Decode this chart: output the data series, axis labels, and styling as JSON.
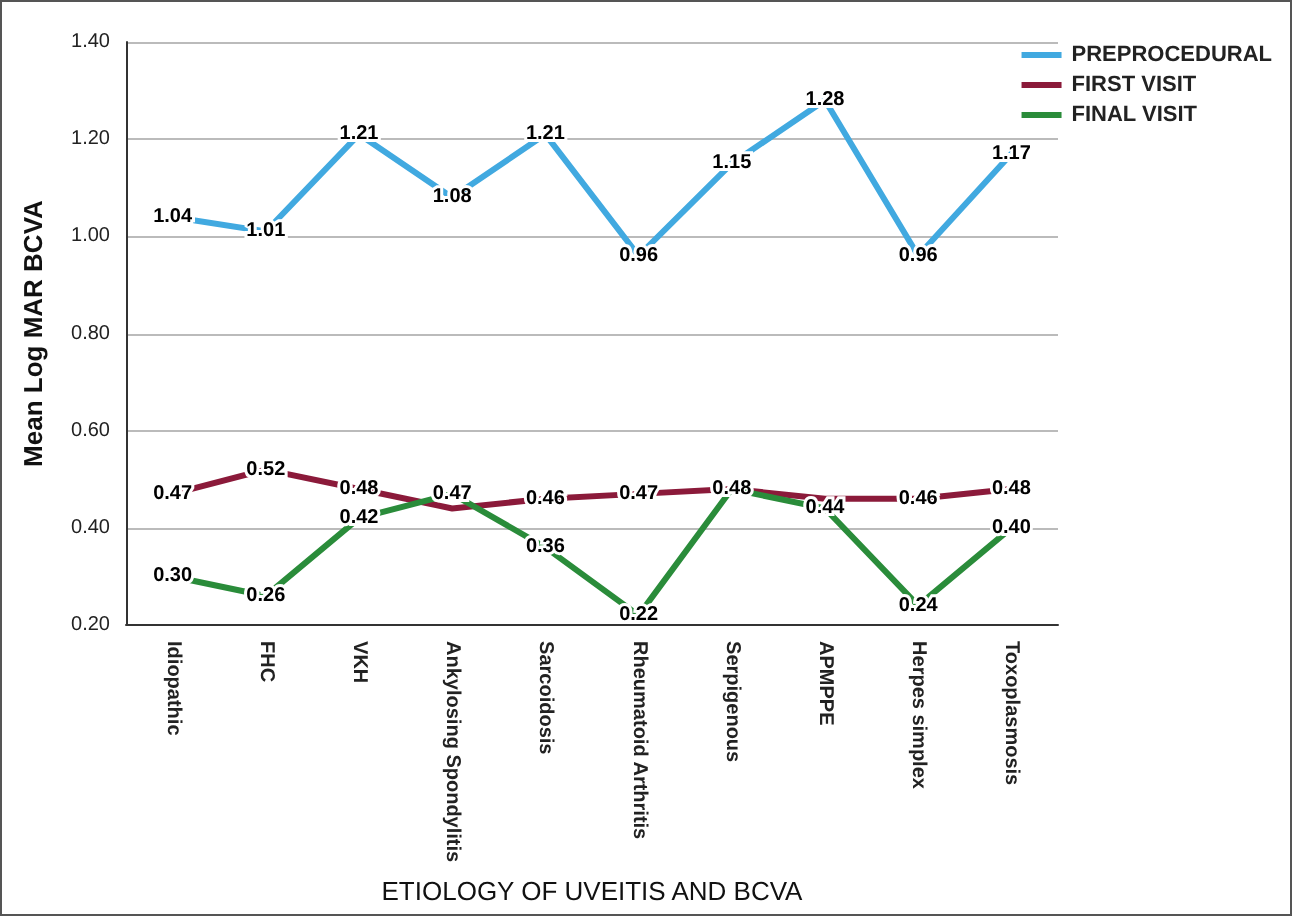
{
  "chart_data": {
    "type": "line",
    "xlabel": "ETIOLOGY OF UVEITIS AND BCVA",
    "ylabel": "Mean Log MAR BCVA",
    "categories": [
      "Idiopathic",
      "FHC",
      "VKH",
      "Ankylosing Spondylitis",
      "Sarcoidosis",
      "Rheumatoid Arthritis",
      "Serpigenous",
      "APMPPE",
      "Herpes simplex",
      "Toxoplasmosis"
    ],
    "series": [
      {
        "name": "PREPROCEDURAL",
        "color": "#41a9e0",
        "values": [
          1.04,
          1.01,
          1.21,
          1.08,
          1.21,
          0.96,
          1.15,
          1.28,
          0.96,
          1.17
        ],
        "value_labels": [
          "1.04",
          "1.01",
          "1.21",
          "1.08",
          "1.21",
          "0.96",
          "1.15",
          "1.28",
          "0.96",
          "1.17"
        ]
      },
      {
        "name": "FIRST VISIT",
        "color": "#8b1a3a",
        "values": [
          0.47,
          0.52,
          0.48,
          0.44,
          0.46,
          0.47,
          0.48,
          0.46,
          0.46,
          0.48
        ],
        "value_labels": [
          "0.47",
          "0.52",
          "0.48",
          null,
          "0.46",
          "0.47",
          null,
          null,
          "0.46",
          "0.48"
        ]
      },
      {
        "name": "FINAL VISIT",
        "color": "#2a8c3a",
        "values": [
          0.3,
          0.26,
          0.42,
          0.47,
          0.36,
          0.22,
          0.48,
          0.44,
          0.24,
          0.4
        ],
        "value_labels": [
          "0.30",
          "0.26",
          "0.42",
          "0.47",
          "0.36",
          "0.22",
          "0.48",
          "0.44",
          "0.24",
          "0.40"
        ]
      }
    ],
    "ylim": [
      0.2,
      1.4
    ],
    "yticks": [
      {
        "value": 0.2,
        "label": "0.20"
      },
      {
        "value": 0.4,
        "label": "0.40"
      },
      {
        "value": 0.6,
        "label": "0.60"
      },
      {
        "value": 0.8,
        "label": "0.80"
      },
      {
        "value": 1.0,
        "label": "1.00"
      },
      {
        "value": 1.2,
        "label": "1.20"
      },
      {
        "value": 1.4,
        "label": "1.40"
      }
    ],
    "grid": "y",
    "legend": "top right",
    "marker": "none",
    "line_style": "solid"
  }
}
